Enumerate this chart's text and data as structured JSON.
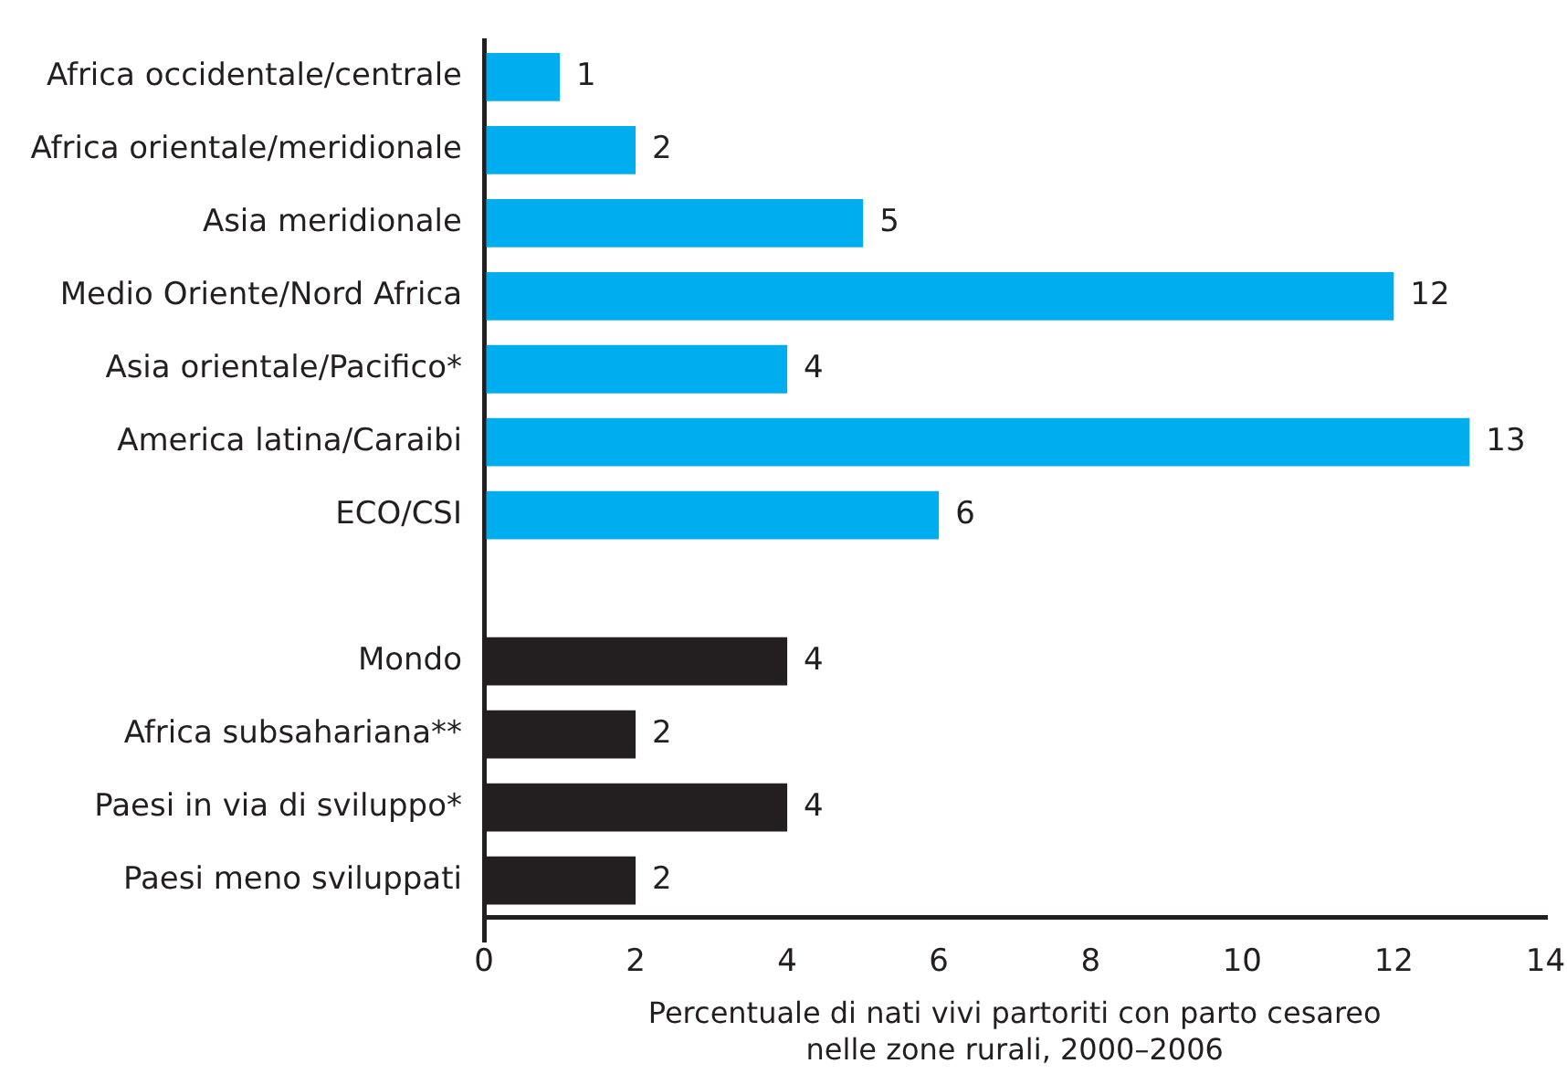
{
  "chart_data": {
    "type": "bar",
    "orientation": "horizontal",
    "categories": [
      "Africa occidentale/centrale",
      "Africa orientale/meridionale",
      "Asia meridionale",
      "Medio Oriente/Nord Africa",
      "Asia orientale/Pacifico*",
      "America latina/Caraibi",
      "ECO/CSI",
      null,
      "Mondo",
      "Africa subsahariana**",
      "Paesi in via di sviluppo*",
      "Paesi meno sviluppati"
    ],
    "values": [
      1,
      2,
      5,
      12,
      4,
      13,
      6,
      null,
      4,
      2,
      4,
      2
    ],
    "colors": [
      "#00aeef",
      "#00aeef",
      "#00aeef",
      "#00aeef",
      "#00aeef",
      "#00aeef",
      "#00aeef",
      null,
      "#231f20",
      "#231f20",
      "#231f20",
      "#231f20"
    ],
    "xlabel": "Percentuale di nati vivi partoriti con parto cesareo\nnelle zone rurali, 2000–2006",
    "xlim": [
      0,
      14
    ],
    "xticks": [
      0,
      2,
      4,
      6,
      8,
      10,
      12,
      14
    ],
    "data_labels": true,
    "grid": false,
    "legend": false
  }
}
